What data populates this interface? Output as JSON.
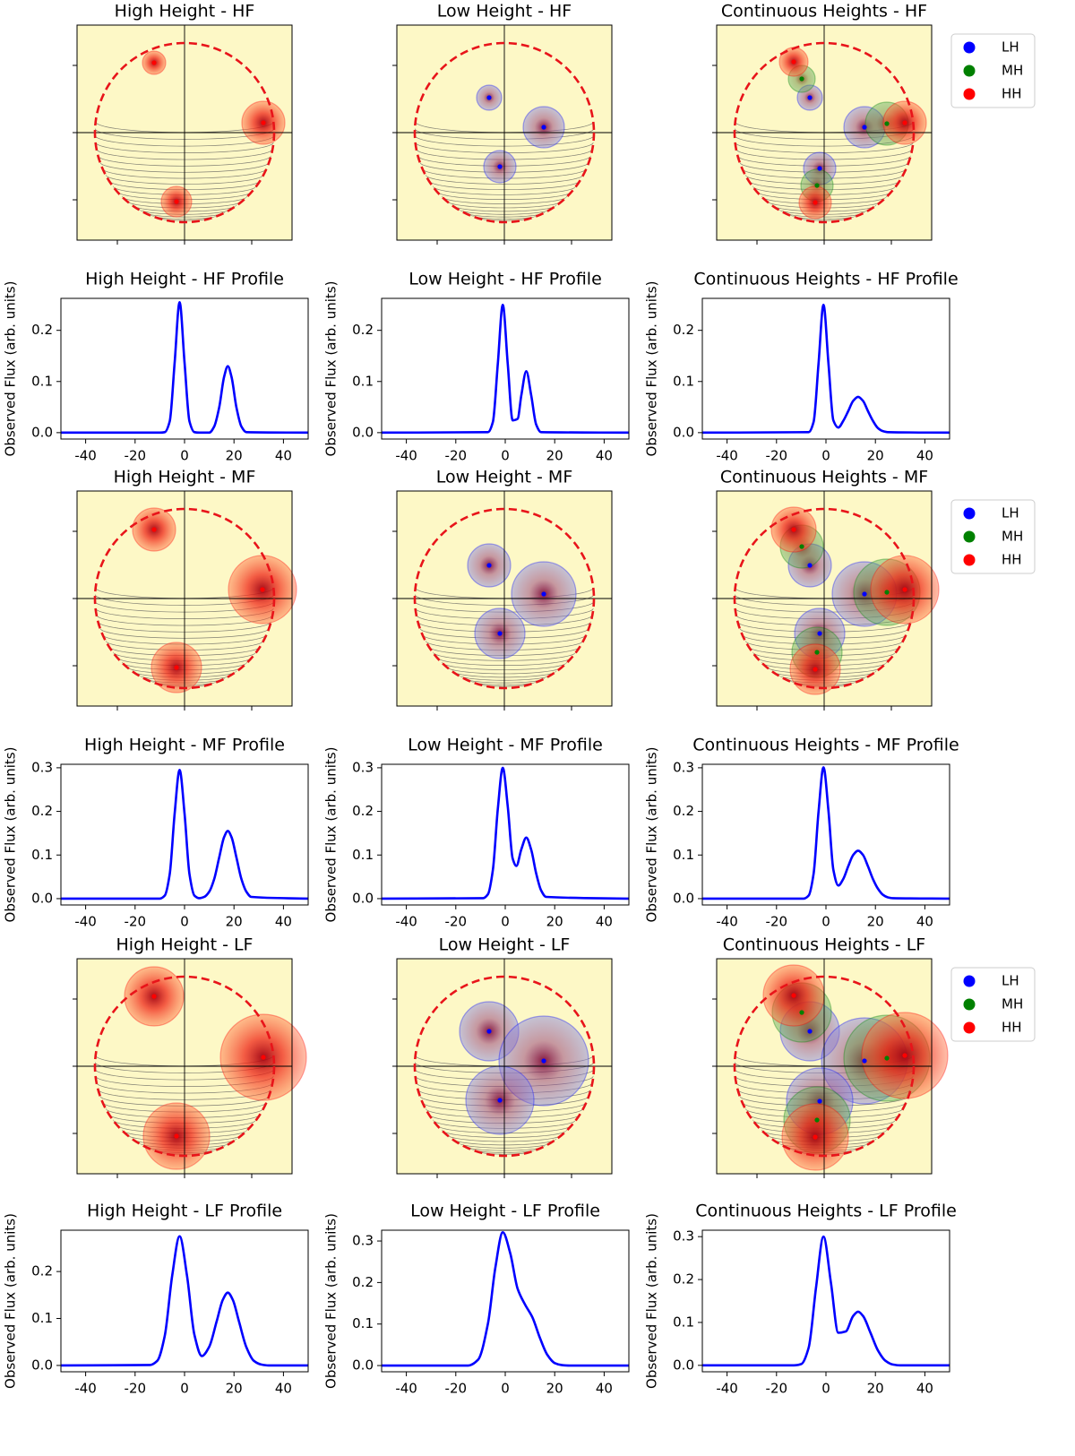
{
  "chart_data": [
    {
      "type": "bubble",
      "title": "High Height - HF",
      "xlim": [
        -1.2,
        1.2
      ],
      "ylim": [
        -1.2,
        1.2
      ],
      "xticks": [
        -0.75,
        0,
        0.75
      ],
      "yticks": [
        -0.75,
        0,
        0.75
      ],
      "series": [
        {
          "color": "red",
          "x": [
            -0.34,
            0.88,
            -0.09
          ],
          "values": [
            0.78,
            0.11,
            -0.77
          ],
          "sizes": [
            0.13,
            0.24,
            0.17
          ]
        }
      ]
    },
    {
      "type": "bubble",
      "title": "Low Height - HF",
      "xlim": [
        -1.2,
        1.2
      ],
      "ylim": [
        -1.2,
        1.2
      ],
      "xticks": [
        -0.75,
        0,
        0.75
      ],
      "yticks": [
        -0.75,
        0,
        0.75
      ],
      "series": [
        {
          "color": "blue",
          "x": [
            -0.17,
            0.44,
            -0.05
          ],
          "values": [
            0.39,
            0.06,
            -0.38
          ],
          "sizes": [
            0.14,
            0.23,
            0.18
          ]
        }
      ]
    },
    {
      "type": "bubble",
      "title": "Continuous Heights - HF",
      "xlim": [
        -1.2,
        1.2
      ],
      "ylim": [
        -1.2,
        1.2
      ],
      "xticks": [
        -0.75,
        0,
        0.75
      ],
      "yticks": [
        -0.75,
        0,
        0.75
      ],
      "legend": "outside right",
      "series": [
        {
          "name": "LH",
          "color": "blue",
          "x": [
            -0.16,
            0.45,
            -0.05
          ],
          "values": [
            0.39,
            0.06,
            -0.4
          ],
          "sizes": [
            0.14,
            0.23,
            0.18
          ]
        },
        {
          "name": "MH",
          "color": "green",
          "x": [
            -0.25,
            0.7,
            -0.08
          ],
          "values": [
            0.6,
            0.1,
            -0.59
          ],
          "sizes": [
            0.15,
            0.24,
            0.18
          ]
        },
        {
          "name": "HH",
          "color": "red",
          "x": [
            -0.34,
            0.9,
            -0.1
          ],
          "values": [
            0.79,
            0.11,
            -0.78
          ],
          "sizes": [
            0.16,
            0.24,
            0.18
          ]
        }
      ]
    },
    {
      "type": "line",
      "title": "High Height - HF Profile",
      "ylabel": "Observed Flux (arb. units)",
      "color": "blue",
      "x": [
        -50,
        -10,
        -8,
        -6,
        -4,
        -2,
        0,
        2,
        4,
        6,
        8,
        10,
        12,
        14,
        16,
        17.5,
        19,
        21,
        23,
        25,
        50
      ],
      "values": [
        0,
        0,
        0.001,
        0.022,
        0.137,
        0.255,
        0.137,
        0.022,
        0.001,
        0,
        0,
        0,
        0.012,
        0.049,
        0.109,
        0.13,
        0.109,
        0.049,
        0.012,
        0.001,
        0
      ],
      "xlim": [
        -50,
        50
      ],
      "xticks": [
        -40,
        -20,
        0,
        20,
        40
      ],
      "ylim": [
        -0.0125,
        0.2625
      ],
      "yticks": [
        {
          "value": 0,
          "label": "0.0"
        },
        0.1,
        0.2
      ]
    },
    {
      "type": "line",
      "title": "Low Height - HF Profile",
      "ylabel": "Observed Flux (arb. units)",
      "color": "blue",
      "x": [
        -50,
        -7,
        -5,
        -3,
        -1,
        1,
        3,
        5,
        6.5,
        8.5,
        10.5,
        12.5,
        14.5,
        50
      ],
      "values": [
        0,
        0.001,
        0.021,
        0.135,
        0.25,
        0.135,
        0.024,
        0.027,
        0.073,
        0.12,
        0.073,
        0.016,
        0.001,
        0
      ],
      "xlim": [
        -50,
        50
      ],
      "xticks": [
        -40,
        -20,
        0,
        20,
        40
      ],
      "ylim": [
        -0.0125,
        0.2625
      ],
      "yticks": [
        {
          "value": 0,
          "label": "0.0"
        },
        0.1,
        0.2
      ]
    },
    {
      "type": "line",
      "title": "Continuous Heights - HF Profile",
      "ylabel": "Observed Flux (arb. units)",
      "color": "blue",
      "x": [
        -50,
        -7,
        -5,
        -3,
        -1,
        1,
        3,
        5,
        7,
        9,
        11,
        13,
        15,
        17,
        19,
        21,
        23,
        25,
        50
      ],
      "values": [
        0,
        0.001,
        0.021,
        0.135,
        0.25,
        0.136,
        0.024,
        0.01,
        0.023,
        0.042,
        0.062,
        0.07,
        0.062,
        0.042,
        0.023,
        0.009,
        0.003,
        0.001,
        0
      ],
      "xlim": [
        -50,
        50
      ],
      "xticks": [
        -40,
        -20,
        0,
        20,
        40
      ],
      "ylim": [
        -0.0125,
        0.2625
      ],
      "yticks": [
        {
          "value": 0,
          "label": "0.0"
        },
        0.1,
        0.2
      ]
    },
    {
      "type": "bubble",
      "title": "High Height - MF",
      "xlim": [
        -1.2,
        1.2
      ],
      "ylim": [
        -1.2,
        1.2
      ],
      "xticks": [
        -0.75,
        0,
        0.75
      ],
      "yticks": [
        -0.75,
        0,
        0.75
      ],
      "series": [
        {
          "color": "red",
          "x": [
            -0.34,
            0.87,
            -0.09
          ],
          "values": [
            0.77,
            0.1,
            -0.77
          ],
          "sizes": [
            0.24,
            0.38,
            0.28
          ]
        }
      ]
    },
    {
      "type": "bubble",
      "title": "Low Height - MF",
      "xlim": [
        -1.2,
        1.2
      ],
      "ylim": [
        -1.2,
        1.2
      ],
      "xticks": [
        -0.75,
        0,
        0.75
      ],
      "yticks": [
        -0.75,
        0,
        0.75
      ],
      "series": [
        {
          "color": "blue",
          "x": [
            -0.17,
            0.44,
            -0.05
          ],
          "values": [
            0.37,
            0.05,
            -0.39
          ],
          "sizes": [
            0.24,
            0.36,
            0.28
          ]
        }
      ]
    },
    {
      "type": "bubble",
      "title": "Continuous Heights - MF",
      "xlim": [
        -1.2,
        1.2
      ],
      "ylim": [
        -1.2,
        1.2
      ],
      "xticks": [
        -0.75,
        0,
        0.75
      ],
      "yticks": [
        -0.75,
        0,
        0.75
      ],
      "legend": "outside right",
      "series": [
        {
          "name": "LH",
          "color": "blue",
          "x": [
            -0.16,
            0.45,
            -0.05
          ],
          "values": [
            0.37,
            0.05,
            -0.39
          ],
          "sizes": [
            0.24,
            0.36,
            0.28
          ]
        },
        {
          "name": "MH",
          "color": "green",
          "x": [
            -0.25,
            0.7,
            -0.08
          ],
          "values": [
            0.58,
            0.07,
            -0.6
          ],
          "sizes": [
            0.24,
            0.37,
            0.28
          ]
        },
        {
          "name": "HH",
          "color": "red",
          "x": [
            -0.34,
            0.9,
            -0.1
          ],
          "values": [
            0.77,
            0.1,
            -0.79
          ],
          "sizes": [
            0.25,
            0.38,
            0.28
          ]
        }
      ]
    },
    {
      "type": "line",
      "title": "High Height - MF Profile",
      "ylabel": "Observed Flux (arb. units)",
      "color": "blue",
      "x": [
        -50,
        -10,
        -8,
        -6,
        -4,
        -2,
        0,
        2,
        4,
        6,
        8,
        10,
        12,
        14,
        16,
        17.5,
        19,
        21,
        23,
        25,
        27,
        50
      ],
      "values": [
        0,
        0,
        0.007,
        0.056,
        0.195,
        0.295,
        0.195,
        0.056,
        0.007,
        0.001,
        0.004,
        0.016,
        0.045,
        0.094,
        0.141,
        0.155,
        0.141,
        0.094,
        0.045,
        0.016,
        0.004,
        0
      ],
      "xlim": [
        -50,
        50
      ],
      "xticks": [
        -40,
        -20,
        0,
        20,
        40
      ],
      "ylim": [
        -0.0145,
        0.308
      ],
      "yticks": [
        {
          "value": 0,
          "label": "0.0"
        },
        0.1,
        0.2,
        0.3
      ]
    },
    {
      "type": "line",
      "title": "Low Height - MF Profile",
      "ylabel": "Observed Flux (arb. units)",
      "color": "blue",
      "x": [
        -50,
        -9,
        -7,
        -5,
        -3,
        -1,
        1,
        3,
        4.5,
        6.5,
        8.5,
        10.5,
        12.5,
        14.5,
        16.5,
        50
      ],
      "values": [
        0,
        0.001,
        0.01,
        0.066,
        0.206,
        0.3,
        0.212,
        0.092,
        0.075,
        0.113,
        0.14,
        0.112,
        0.058,
        0.019,
        0.004,
        0
      ],
      "xlim": [
        -50,
        50
      ],
      "xticks": [
        -40,
        -20,
        0,
        20,
        40
      ],
      "ylim": [
        -0.0145,
        0.308
      ],
      "yticks": [
        {
          "value": 0,
          "label": "0.0"
        },
        0.1,
        0.2,
        0.3
      ]
    },
    {
      "type": "line",
      "title": "Continuous Heights - MF Profile",
      "ylabel": "Observed Flux (arb. units)",
      "color": "blue",
      "x": [
        -50,
        -9,
        -7,
        -5,
        -3,
        -1,
        1,
        3,
        5,
        7,
        9,
        11,
        13,
        15,
        17,
        19,
        21,
        23,
        25,
        27,
        50
      ],
      "values": [
        0,
        0,
        0.007,
        0.057,
        0.199,
        0.301,
        0.202,
        0.066,
        0.03,
        0.045,
        0.074,
        0.1,
        0.11,
        0.1,
        0.074,
        0.045,
        0.023,
        0.009,
        0.003,
        0.001,
        0
      ],
      "xlim": [
        -50,
        50
      ],
      "xticks": [
        -40,
        -20,
        0,
        20,
        40
      ],
      "ylim": [
        -0.0145,
        0.308
      ],
      "yticks": [
        {
          "value": 0,
          "label": "0.0"
        },
        0.1,
        0.2,
        0.3
      ]
    },
    {
      "type": "bubble",
      "title": "High Height - LF",
      "xlim": [
        -1.2,
        1.2
      ],
      "ylim": [
        -1.2,
        1.2
      ],
      "xticks": [
        -0.75,
        0,
        0.75
      ],
      "yticks": [
        -0.75,
        0,
        0.75
      ],
      "series": [
        {
          "color": "red",
          "x": [
            -0.34,
            0.88,
            -0.09
          ],
          "values": [
            0.78,
            0.1,
            -0.78
          ],
          "sizes": [
            0.33,
            0.48,
            0.37
          ]
        }
      ]
    },
    {
      "type": "bubble",
      "title": "Low Height - LF",
      "xlim": [
        -1.2,
        1.2
      ],
      "ylim": [
        -1.2,
        1.2
      ],
      "xticks": [
        -0.75,
        0,
        0.75
      ],
      "yticks": [
        -0.75,
        0,
        0.75
      ],
      "series": [
        {
          "color": "blue",
          "x": [
            -0.17,
            0.44,
            -0.05
          ],
          "values": [
            0.39,
            0.06,
            -0.38
          ],
          "sizes": [
            0.33,
            0.5,
            0.38
          ]
        }
      ]
    },
    {
      "type": "bubble",
      "title": "Continuous Heights - LF",
      "xlim": [
        -1.2,
        1.2
      ],
      "ylim": [
        -1.2,
        1.2
      ],
      "xticks": [
        -0.75,
        0,
        0.75
      ],
      "yticks": [
        -0.75,
        0,
        0.75
      ],
      "legend": "outside right",
      "series": [
        {
          "name": "LH",
          "color": "blue",
          "x": [
            -0.16,
            0.45,
            -0.05
          ],
          "values": [
            0.39,
            0.06,
            -0.39
          ],
          "sizes": [
            0.33,
            0.48,
            0.37
          ]
        },
        {
          "name": "MH",
          "color": "green",
          "x": [
            -0.25,
            0.7,
            -0.08
          ],
          "values": [
            0.6,
            0.09,
            -0.6
          ],
          "sizes": [
            0.33,
            0.48,
            0.37
          ]
        },
        {
          "name": "HH",
          "color": "red",
          "x": [
            -0.34,
            0.9,
            -0.1
          ],
          "values": [
            0.79,
            0.12,
            -0.79
          ],
          "sizes": [
            0.34,
            0.48,
            0.37
          ]
        }
      ]
    },
    {
      "type": "line",
      "title": "High Height - LF Profile",
      "ylabel": "Observed Flux (arb. units)",
      "color": "blue",
      "x": [
        -50,
        -14,
        -11,
        -8,
        -5,
        -2,
        1,
        4,
        7,
        10,
        13,
        15.5,
        17.5,
        19.5,
        22,
        25,
        28,
        31,
        34,
        50
      ],
      "values": [
        0,
        0.001,
        0.01,
        0.063,
        0.191,
        0.275,
        0.191,
        0.065,
        0.02,
        0.04,
        0.094,
        0.14,
        0.155,
        0.14,
        0.094,
        0.039,
        0.01,
        0.002,
        0,
        0
      ],
      "xlim": [
        -50,
        50
      ],
      "xticks": [
        -40,
        -20,
        0,
        20,
        40
      ],
      "ylim": [
        -0.0135,
        0.288
      ],
      "yticks": [
        {
          "value": 0,
          "label": "0.0"
        },
        0.1,
        0.2
      ]
    },
    {
      "type": "line",
      "title": "Low Height - LF Profile",
      "ylabel": "Observed Flux (arb. units)",
      "color": "blue",
      "x": [
        -50,
        -15,
        -11,
        -7,
        -4,
        -1,
        2,
        5,
        8,
        11,
        14,
        17,
        20,
        23,
        26,
        50
      ],
      "values": [
        0,
        0,
        0.014,
        0.101,
        0.236,
        0.321,
        0.271,
        0.185,
        0.147,
        0.116,
        0.067,
        0.026,
        0.006,
        0.001,
        0,
        0
      ],
      "xlim": [
        -50,
        50
      ],
      "xticks": [
        -40,
        -20,
        0,
        20,
        40
      ],
      "ylim": [
        -0.015,
        0.326
      ],
      "yticks": [
        {
          "value": 0,
          "label": "0.0"
        },
        0.1,
        0.2,
        0.3
      ]
    },
    {
      "type": "line",
      "title": "Continuous Heights - LF Profile",
      "ylabel": "Observed Flux (arb. units)",
      "color": "blue",
      "x": [
        -50,
        -13,
        -10,
        -7,
        -4,
        -1,
        2,
        5,
        8,
        11,
        13,
        15,
        18,
        21,
        24,
        27,
        30,
        50
      ],
      "values": [
        0,
        0,
        0.003,
        0.041,
        0.182,
        0.3,
        0.193,
        0.076,
        0.079,
        0.115,
        0.125,
        0.115,
        0.076,
        0.035,
        0.011,
        0.002,
        0,
        0
      ],
      "xlim": [
        -50,
        50
      ],
      "xticks": [
        -40,
        -20,
        0,
        20,
        40
      ],
      "ylim": [
        -0.015,
        0.315
      ],
      "yticks": [
        {
          "value": 0,
          "label": "0.0"
        },
        0.1,
        0.2,
        0.3
      ]
    }
  ]
}
